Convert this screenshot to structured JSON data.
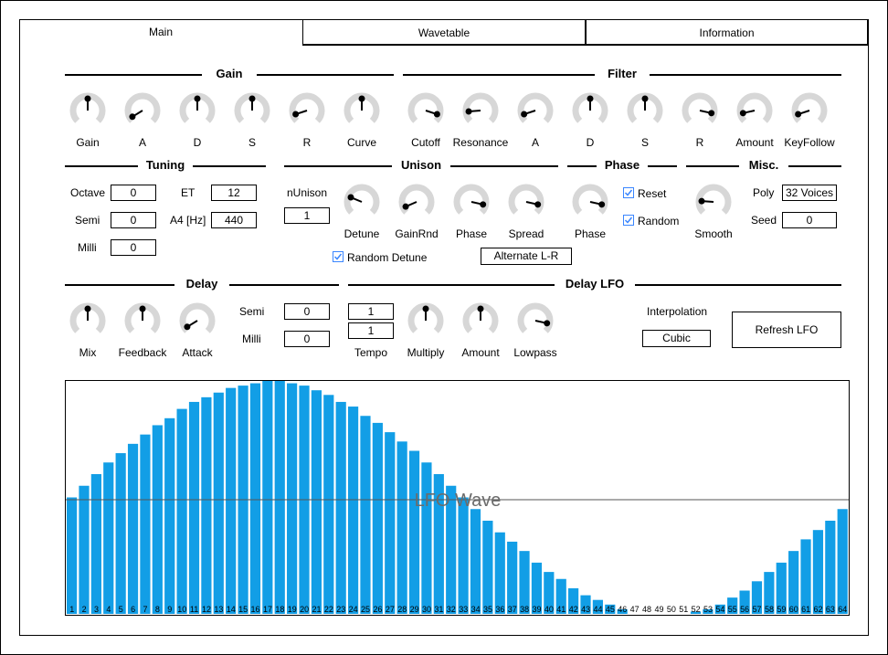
{
  "tabs": [
    {
      "label": "Main",
      "selected": true
    },
    {
      "label": "Wavetable",
      "selected": false
    },
    {
      "label": "Information",
      "selected": false
    }
  ],
  "sections": {
    "gain": "Gain",
    "filter": "Filter",
    "tuning": "Tuning",
    "unison": "Unison",
    "phase": "Phase",
    "misc": "Misc.",
    "delay": "Delay",
    "delay_lfo": "Delay LFO"
  },
  "gain_knobs": [
    {
      "label": "Gain",
      "value": 0.5
    },
    {
      "label": "A",
      "value": 0.05
    },
    {
      "label": "D",
      "value": 0.5
    },
    {
      "label": "S",
      "value": 0.5
    },
    {
      "label": "R",
      "value": 0.1
    },
    {
      "label": "Curve",
      "value": 0.5
    }
  ],
  "filter_knobs": [
    {
      "label": "Cutoff",
      "value": 0.9
    },
    {
      "label": "Resonance",
      "value": 0.15
    },
    {
      "label": "A",
      "value": 0.1
    },
    {
      "label": "D",
      "value": 0.5
    },
    {
      "label": "S",
      "value": 0.5
    },
    {
      "label": "R",
      "value": 0.88
    },
    {
      "label": "Amount",
      "value": 0.12
    },
    {
      "label": "KeyFollow",
      "value": 0.1
    }
  ],
  "tuning": {
    "octave_label": "Octave",
    "octave_value": "0",
    "semi_label": "Semi",
    "semi_value": "0",
    "milli_label": "Milli",
    "milli_value": "0",
    "et_label": "ET",
    "et_value": "12",
    "a4_label": "A4 [Hz]",
    "a4_value": "440"
  },
  "unison": {
    "nunison_label": "nUnison",
    "nunison_value": "1",
    "knobs": [
      {
        "label": "Detune",
        "value": 0.25
      },
      {
        "label": "GainRnd",
        "value": 0.08
      },
      {
        "label": "Phase",
        "value": 0.88
      },
      {
        "label": "Spread",
        "value": 0.88
      }
    ],
    "random_detune_label": "Random Detune",
    "random_detune_checked": true,
    "stereo_mode_value": "Alternate L-R"
  },
  "phase": {
    "knob": {
      "label": "Phase",
      "value": 0.88
    },
    "reset_label": "Reset",
    "reset_checked": true,
    "random_label": "Random",
    "random_checked": true
  },
  "misc": {
    "smooth_knob": {
      "label": "Smooth",
      "value": 0.18
    },
    "poly_label": "Poly",
    "poly_value": "32 Voices",
    "seed_label": "Seed",
    "seed_value": "0"
  },
  "delay_knobs": [
    {
      "label": "Mix",
      "value": 0.5
    },
    {
      "label": "Feedback",
      "value": 0.5
    },
    {
      "label": "Attack",
      "value": 0.05
    }
  ],
  "delay": {
    "semi_label": "Semi",
    "semi_value": "0",
    "milli_label": "Milli",
    "milli_value": "0"
  },
  "delay_lfo": {
    "tempo_upper": "1",
    "tempo_lower": "1",
    "tempo_label": "Tempo",
    "knobs": [
      {
        "label": "Multiply",
        "value": 0.5
      },
      {
        "label": "Amount",
        "value": 0.5
      },
      {
        "label": "Lowpass",
        "value": 0.88
      }
    ],
    "interpolation_label": "Interpolation",
    "interpolation_value": "Cubic",
    "refresh_label": "Refresh LFO"
  },
  "lfo_wave": {
    "title": "LFO Wave",
    "bar_color": "#129ee6",
    "indices": [
      "1",
      "2",
      "3",
      "4",
      "5",
      "6",
      "7",
      "8",
      "9",
      "10",
      "11",
      "12",
      "13",
      "14",
      "15",
      "16",
      "17",
      "18",
      "19",
      "20",
      "21",
      "22",
      "23",
      "24",
      "25",
      "26",
      "27",
      "28",
      "29",
      "30",
      "31",
      "32",
      "33",
      "34",
      "35",
      "36",
      "37",
      "38",
      "39",
      "40",
      "41",
      "42",
      "43",
      "44",
      "45",
      "46",
      "47",
      "48",
      "49",
      "50",
      "51",
      "52",
      "53",
      "54",
      "55",
      "56",
      "57",
      "58",
      "59",
      "60",
      "61",
      "62",
      "63",
      "64"
    ],
    "values": [
      0.5,
      0.55,
      0.6,
      0.65,
      0.69,
      0.73,
      0.77,
      0.81,
      0.84,
      0.88,
      0.91,
      0.93,
      0.95,
      0.97,
      0.98,
      0.99,
      1.0,
      1.0,
      0.99,
      0.98,
      0.96,
      0.94,
      0.91,
      0.89,
      0.85,
      0.82,
      0.78,
      0.74,
      0.7,
      0.65,
      0.6,
      0.55,
      0.5,
      0.45,
      0.4,
      0.35,
      0.31,
      0.27,
      0.22,
      0.18,
      0.15,
      0.11,
      0.08,
      0.06,
      0.04,
      0.02,
      0.0,
      0.0,
      0.0,
      0.0,
      0.0,
      0.01,
      0.02,
      0.04,
      0.07,
      0.1,
      0.14,
      0.18,
      0.22,
      0.27,
      0.32,
      0.36,
      0.4,
      0.45
    ]
  },
  "colors": {
    "knob_track": "#d7d7d7",
    "accent": "#129ee6",
    "check": "#3a86ff"
  }
}
